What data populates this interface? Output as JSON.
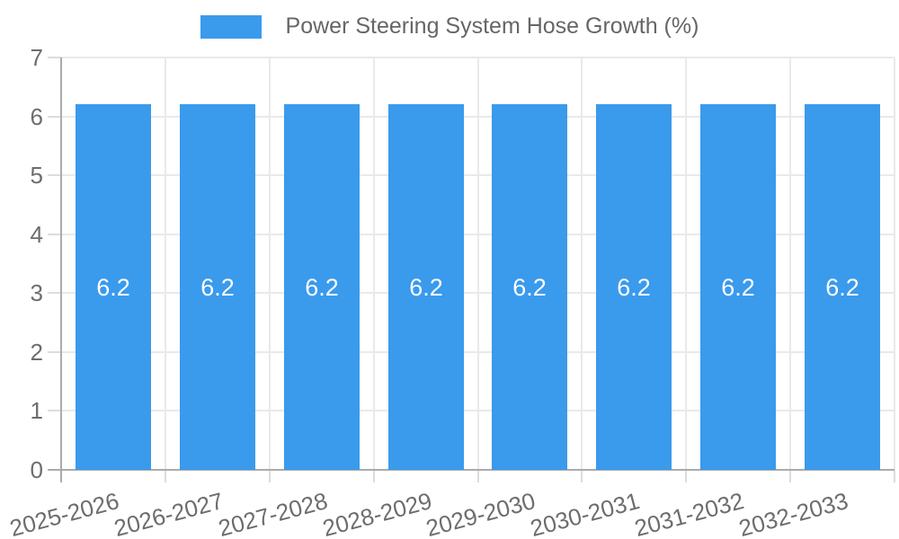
{
  "legend": {
    "label": "Power Steering System Hose Growth (%)"
  },
  "colors": {
    "bar": "#3A9AEC",
    "gridline": "#e9e9e9",
    "tick": "#dcdcdc",
    "axis_line": "#ababab",
    "axis_text": "#6d6d6d",
    "legend_text": "#666666",
    "bar_label_text": "#ffffff",
    "background": "#ffffff"
  },
  "chart_data": {
    "type": "bar",
    "title": "Power Steering System Hose Growth (%)",
    "legend_position": "top",
    "grid": true,
    "xlabel": "",
    "ylabel": "",
    "categories": [
      "2025-2026",
      "2026-2027",
      "2027-2028",
      "2028-2029",
      "2029-2030",
      "2030-2031",
      "2031-2032",
      "2032-2033"
    ],
    "values": [
      6.2,
      6.2,
      6.2,
      6.2,
      6.2,
      6.2,
      6.2,
      6.2
    ],
    "value_labels": [
      "6.2",
      "6.2",
      "6.2",
      "6.2",
      "6.2",
      "6.2",
      "6.2",
      "6.2"
    ],
    "ylim": [
      0,
      7
    ],
    "yticks": [
      0,
      1,
      2,
      3,
      4,
      5,
      6,
      7
    ]
  }
}
